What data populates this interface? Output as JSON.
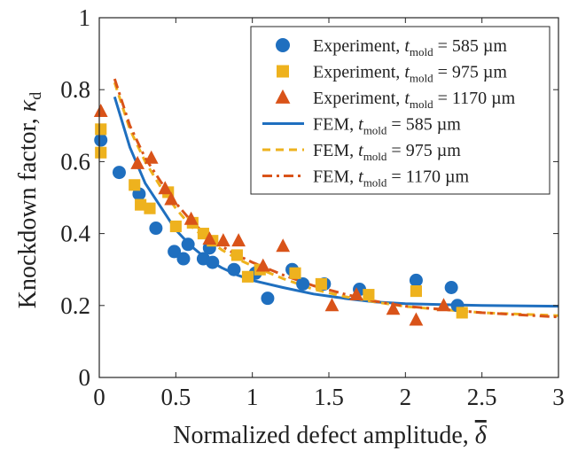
{
  "chart_data": {
    "type": "scatter",
    "xlabel": "Normalized defect amplitude,",
    "xlabel_symbol": "δ",
    "ylabel": "Knockdown factor,",
    "ylabel_symbol": "κ",
    "ylabel_sub": "d",
    "xlim": [
      0,
      3
    ],
    "ylim": [
      0,
      1
    ],
    "xticks": [
      "0",
      "0.5",
      "1",
      "1.5",
      "2",
      "2.5",
      "3"
    ],
    "xtick_values": [
      0,
      0.5,
      1,
      1.5,
      2,
      2.5,
      3
    ],
    "yticks": [
      "0",
      "0.2",
      "0.4",
      "0.6",
      "0.8",
      "1"
    ],
    "ytick_values": [
      0,
      0.2,
      0.4,
      0.6,
      0.8,
      1
    ],
    "grid": false,
    "legend_position": "top-right",
    "series": [
      {
        "name": "Experiment, t_mold = 585 µm",
        "legend_prefix": "Experiment, ",
        "legend_var": "t",
        "legend_sub": "mold",
        "legend_suffix": " = 585 µm",
        "kind": "scatter",
        "marker": "circle",
        "color": "#1f6fbf",
        "points": [
          [
            0.01,
            0.66
          ],
          [
            0.13,
            0.57
          ],
          [
            0.26,
            0.51
          ],
          [
            0.37,
            0.415
          ],
          [
            0.49,
            0.35
          ],
          [
            0.55,
            0.33
          ],
          [
            0.58,
            0.37
          ],
          [
            0.68,
            0.33
          ],
          [
            0.72,
            0.36
          ],
          [
            0.74,
            0.32
          ],
          [
            0.88,
            0.3
          ],
          [
            1.02,
            0.29
          ],
          [
            1.1,
            0.22
          ],
          [
            1.26,
            0.3
          ],
          [
            1.33,
            0.26
          ],
          [
            1.47,
            0.26
          ],
          [
            1.7,
            0.245
          ],
          [
            2.07,
            0.27
          ],
          [
            2.3,
            0.25
          ],
          [
            2.34,
            0.2
          ]
        ]
      },
      {
        "name": "Experiment, t_mold = 975 µm",
        "legend_prefix": "Experiment, ",
        "legend_var": "t",
        "legend_sub": "mold",
        "legend_suffix": " = 975 µm",
        "kind": "scatter",
        "marker": "square",
        "color": "#eeb21e",
        "points": [
          [
            0.01,
            0.69
          ],
          [
            0.01,
            0.625
          ],
          [
            0.23,
            0.535
          ],
          [
            0.27,
            0.48
          ],
          [
            0.33,
            0.47
          ],
          [
            0.45,
            0.515
          ],
          [
            0.5,
            0.42
          ],
          [
            0.61,
            0.43
          ],
          [
            0.68,
            0.4
          ],
          [
            0.74,
            0.38
          ],
          [
            0.9,
            0.34
          ],
          [
            0.97,
            0.28
          ],
          [
            1.05,
            0.3
          ],
          [
            1.28,
            0.29
          ],
          [
            1.45,
            0.26
          ],
          [
            1.76,
            0.23
          ],
          [
            2.07,
            0.24
          ],
          [
            2.37,
            0.18
          ]
        ]
      },
      {
        "name": "Experiment, t_mold = 1170 µm",
        "legend_prefix": "Experiment, ",
        "legend_var": "t",
        "legend_sub": "mold",
        "legend_suffix": " = 1170 µm",
        "kind": "scatter",
        "marker": "triangle",
        "color": "#d95319",
        "points": [
          [
            0.01,
            0.74
          ],
          [
            0.25,
            0.595
          ],
          [
            0.34,
            0.61
          ],
          [
            0.43,
            0.525
          ],
          [
            0.47,
            0.495
          ],
          [
            0.6,
            0.44
          ],
          [
            0.72,
            0.385
          ],
          [
            0.81,
            0.38
          ],
          [
            0.91,
            0.38
          ],
          [
            1.07,
            0.31
          ],
          [
            1.2,
            0.365
          ],
          [
            1.52,
            0.2
          ],
          [
            1.68,
            0.23
          ],
          [
            1.92,
            0.19
          ],
          [
            2.07,
            0.16
          ],
          [
            2.25,
            0.2
          ]
        ]
      },
      {
        "name": "FEM, t_mold = 585 µm",
        "legend_prefix": "FEM, ",
        "legend_var": "t",
        "legend_sub": "mold",
        "legend_suffix": " = 585 µm",
        "kind": "line",
        "dash": "solid",
        "color": "#1f6fbf",
        "points": [
          [
            0.1,
            0.78
          ],
          [
            0.2,
            0.64
          ],
          [
            0.3,
            0.54
          ],
          [
            0.4,
            0.475
          ],
          [
            0.5,
            0.41
          ],
          [
            0.6,
            0.365
          ],
          [
            0.7,
            0.33
          ],
          [
            0.8,
            0.305
          ],
          [
            0.9,
            0.285
          ],
          [
            1.0,
            0.27
          ],
          [
            1.2,
            0.25
          ],
          [
            1.4,
            0.232
          ],
          [
            1.6,
            0.22
          ],
          [
            1.8,
            0.21
          ],
          [
            2.0,
            0.205
          ],
          [
            2.5,
            0.2
          ],
          [
            3.0,
            0.198
          ]
        ]
      },
      {
        "name": "FEM, t_mold = 975 µm",
        "legend_prefix": "FEM, ",
        "legend_var": "t",
        "legend_sub": "mold",
        "legend_suffix": " = 975 µm",
        "kind": "line",
        "dash": "dashed",
        "color": "#eeb21e",
        "points": [
          [
            0.1,
            0.82
          ],
          [
            0.2,
            0.69
          ],
          [
            0.3,
            0.6
          ],
          [
            0.4,
            0.53
          ],
          [
            0.5,
            0.47
          ],
          [
            0.6,
            0.42
          ],
          [
            0.7,
            0.385
          ],
          [
            0.8,
            0.355
          ],
          [
            0.9,
            0.33
          ],
          [
            1.0,
            0.31
          ],
          [
            1.2,
            0.275
          ],
          [
            1.4,
            0.245
          ],
          [
            1.6,
            0.225
          ],
          [
            1.8,
            0.21
          ],
          [
            2.0,
            0.197
          ],
          [
            2.5,
            0.18
          ],
          [
            3.0,
            0.172
          ]
        ]
      },
      {
        "name": "FEM, t_mold = 1170 µm",
        "legend_prefix": "FEM, ",
        "legend_var": "t",
        "legend_sub": "mold",
        "legend_suffix": " = 1170 µm",
        "kind": "line",
        "dash": "dashdot",
        "color": "#d95319",
        "points": [
          [
            0.1,
            0.83
          ],
          [
            0.2,
            0.7
          ],
          [
            0.3,
            0.61
          ],
          [
            0.4,
            0.545
          ],
          [
            0.5,
            0.485
          ],
          [
            0.6,
            0.435
          ],
          [
            0.7,
            0.395
          ],
          [
            0.8,
            0.365
          ],
          [
            0.9,
            0.34
          ],
          [
            1.0,
            0.32
          ],
          [
            1.2,
            0.285
          ],
          [
            1.4,
            0.255
          ],
          [
            1.6,
            0.232
          ],
          [
            1.8,
            0.212
          ],
          [
            2.0,
            0.198
          ],
          [
            2.5,
            0.18
          ],
          [
            3.0,
            0.168
          ]
        ]
      }
    ]
  }
}
